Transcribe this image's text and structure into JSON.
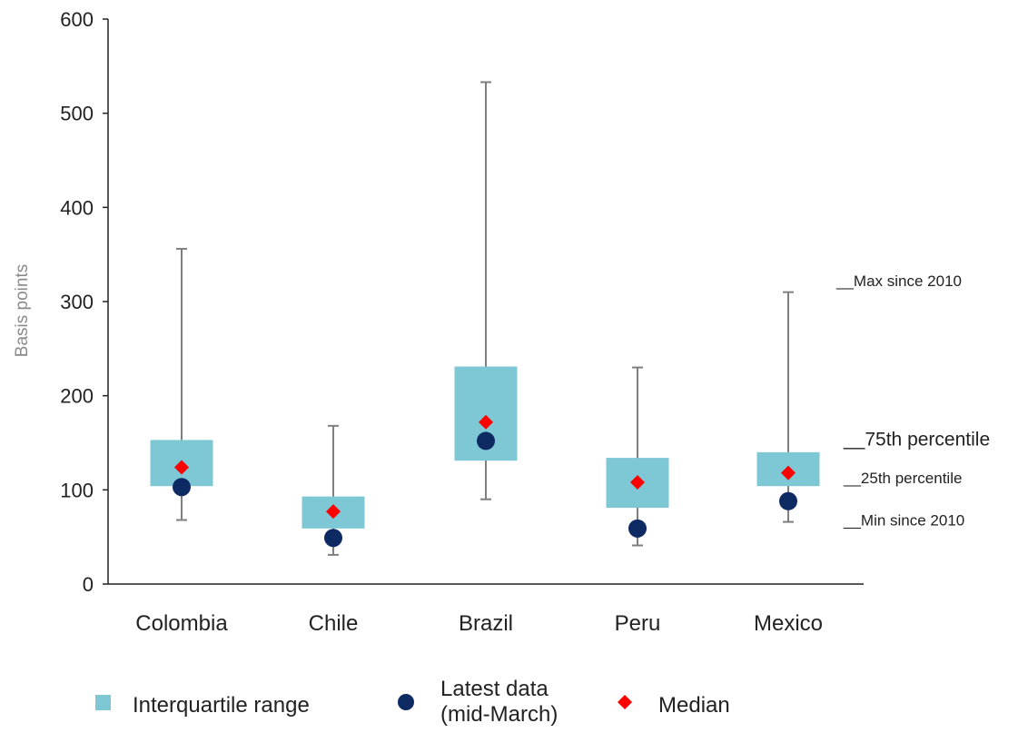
{
  "chart_data": {
    "type": "box",
    "ylabel": "Basis points",
    "xlabel": "",
    "ylim": [
      0,
      600
    ],
    "yticks": [
      0,
      100,
      200,
      300,
      400,
      500,
      600
    ],
    "categories": [
      "Colombia",
      "Chile",
      "Brazil",
      "Peru",
      "Mexico"
    ],
    "series": {
      "min": [
        68,
        31,
        90,
        41,
        66
      ],
      "q1": [
        104,
        59,
        131,
        81,
        104
      ],
      "q3": [
        153,
        93,
        231,
        134,
        140
      ],
      "max": [
        356,
        168,
        533,
        230,
        310
      ],
      "median": [
        124,
        77,
        172,
        108,
        118
      ],
      "latest": [
        103,
        49,
        152,
        59,
        88
      ]
    },
    "annotations": [
      {
        "text": "__Max since 2010",
        "value": 322
      },
      {
        "text": "__75th percentile",
        "value": 153
      },
      {
        "text": "__25th percentile",
        "value": 113
      },
      {
        "text": "__Min since 2010",
        "value": 68
      }
    ],
    "legend": [
      {
        "key": "iqr",
        "label": "Interquartile range"
      },
      {
        "key": "latest",
        "label": "Latest data (mid-March)",
        "lines": [
          "Latest data",
          "(mid-March)"
        ]
      },
      {
        "key": "median",
        "label": "Median"
      }
    ],
    "legend_position": "bottom",
    "colors": {
      "box": "#7ec8d6",
      "whisker": "#7f7f7f",
      "latest": "#0d2a63",
      "median": "#ff0000",
      "axis": "#222222"
    },
    "grid": false
  }
}
